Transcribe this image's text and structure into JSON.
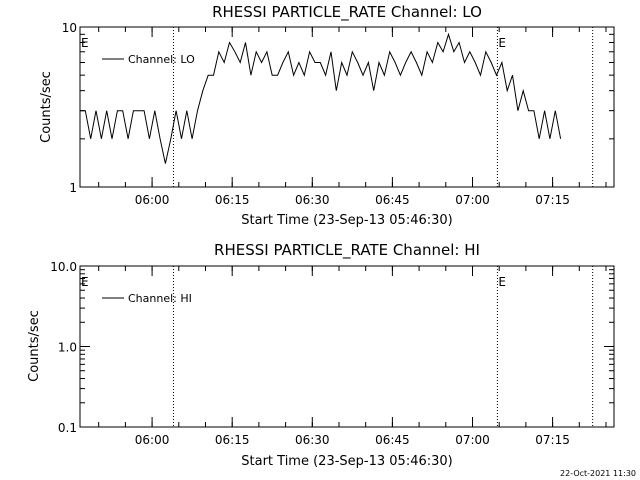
{
  "footer": {
    "timestamp": "22-Oct-2021 11:30"
  },
  "chart_data": [
    {
      "type": "line",
      "title": "RHESSI PARTICLE_RATE Channel: LO",
      "xlabel": "Start Time (23-Sep-13 05:46:30)",
      "ylabel": "Counts/sec",
      "yscale": "log",
      "ylim": [
        1,
        10
      ],
      "xlim": [
        "05:46:30",
        "07:26:30"
      ],
      "ytick_labels": [
        "1",
        "10"
      ],
      "xtick_labels": [
        "06:00",
        "06:15",
        "06:30",
        "06:45",
        "07:00",
        "07:15"
      ],
      "grid": false,
      "legend_position": "top-left",
      "series": [
        {
          "name": "Channel: LO",
          "x_minutes_after_0546": [
            0,
            1,
            2,
            3,
            4,
            5,
            6,
            7,
            8,
            9,
            10,
            11,
            12,
            13,
            14,
            15,
            16,
            17,
            18,
            19,
            20,
            21,
            22,
            23,
            24,
            25,
            26,
            27,
            28,
            29,
            30,
            31,
            32,
            33,
            34,
            35,
            36,
            37,
            38,
            39,
            40,
            41,
            42,
            43,
            44,
            45,
            46,
            47,
            48,
            49,
            50,
            51,
            52,
            53,
            54,
            55,
            56,
            57,
            58,
            59,
            60,
            61,
            62,
            63,
            64,
            65,
            66,
            67,
            68,
            69,
            70,
            71,
            72,
            73,
            74,
            75,
            76,
            77,
            78,
            79,
            80,
            81,
            82,
            83,
            84,
            85,
            86,
            87,
            88,
            89,
            90
          ],
          "y": [
            3,
            3,
            2,
            3,
            2,
            3,
            2,
            3,
            3,
            2,
            3,
            3,
            3,
            2,
            3,
            2,
            1.4,
            2,
            3,
            2,
            3,
            2,
            3,
            4,
            5,
            5,
            7,
            6,
            8,
            7,
            6,
            8,
            5,
            7,
            6,
            7,
            5,
            5,
            6,
            7,
            5,
            6,
            5,
            7,
            6,
            6,
            5,
            7,
            4,
            6,
            5,
            7,
            6,
            5,
            6,
            4,
            6,
            5,
            7,
            6,
            5,
            6,
            7,
            6,
            5,
            7,
            6,
            8,
            7,
            9,
            7,
            8,
            6,
            7,
            6,
            5,
            7,
            6,
            5,
            6,
            4,
            5,
            3,
            4,
            3,
            3,
            2,
            3,
            2,
            3,
            2
          ]
        }
      ],
      "events": [
        {
          "label": "E",
          "time": "05:46:30"
        },
        {
          "label": "",
          "time": "06:04:00"
        },
        {
          "label": "E",
          "time": "07:04:40"
        },
        {
          "label": "",
          "time": "07:22:30"
        }
      ]
    },
    {
      "type": "line",
      "title": "RHESSI PARTICLE_RATE Channel: HI",
      "xlabel": "Start Time (23-Sep-13 05:46:30)",
      "ylabel": "Counts/sec",
      "yscale": "log",
      "ylim": [
        0.1,
        10
      ],
      "xlim": [
        "05:46:30",
        "07:26:30"
      ],
      "ytick_labels": [
        "0.1",
        "1.0",
        "10.0"
      ],
      "xtick_labels": [
        "06:00",
        "06:15",
        "06:30",
        "06:45",
        "07:00",
        "07:15"
      ],
      "grid": false,
      "legend_position": "top-left",
      "series": [
        {
          "name": "Channel: HI",
          "x_minutes_after_0546": [],
          "y": []
        }
      ],
      "events": [
        {
          "label": "E",
          "time": "05:46:30"
        },
        {
          "label": "",
          "time": "06:04:00"
        },
        {
          "label": "E",
          "time": "07:04:40"
        },
        {
          "label": "",
          "time": "07:22:30"
        }
      ]
    }
  ]
}
